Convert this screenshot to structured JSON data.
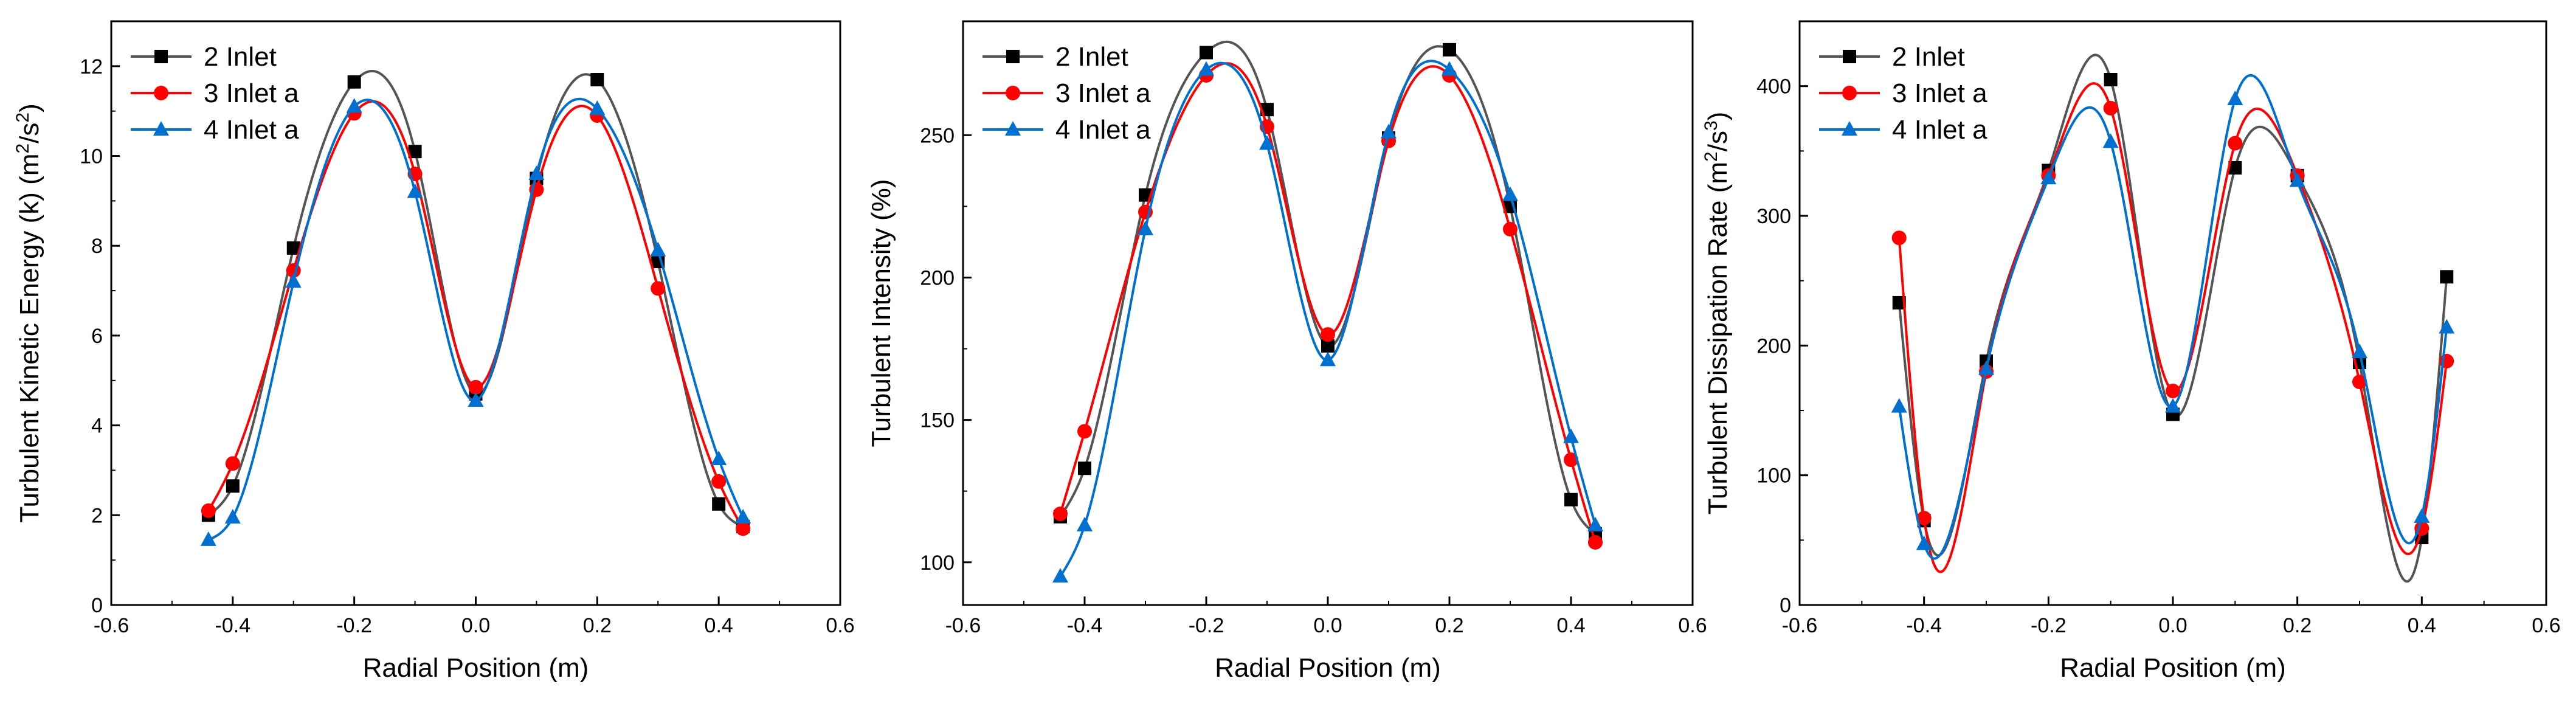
{
  "chart_data": [
    {
      "type": "line",
      "id": "tke",
      "title": "",
      "xlabel": "Radial Position (m)",
      "ylabel": "Turbulent Kinetic Energy (k) (m²/s²)",
      "ylabel_parts": [
        "Turbulent Kinetic Energy (k) (m",
        "2",
        "/s",
        "2",
        ")"
      ],
      "xlim": [
        -0.6,
        0.6
      ],
      "ylim": [
        0,
        13
      ],
      "xticks": [
        -0.6,
        -0.4,
        -0.2,
        0.0,
        0.2,
        0.4,
        0.6
      ],
      "xtick_labels": [
        "-0.6",
        "-0.4",
        "-0.2",
        "0.0",
        "0.2",
        "0.4",
        "0.6"
      ],
      "yticks": [
        0,
        2,
        4,
        6,
        8,
        10,
        12
      ],
      "ytick_labels": [
        "0",
        "2",
        "4",
        "6",
        "8",
        "10",
        "12"
      ],
      "grid": false,
      "legend_position": "top-left",
      "series": [
        {
          "name": "2 Inlet",
          "color": "#000000",
          "line_color": "#555555",
          "marker": "square",
          "x": [
            -0.44,
            -0.4,
            -0.3,
            -0.2,
            -0.1,
            0.0,
            0.1,
            0.2,
            0.3,
            0.4,
            0.44
          ],
          "y": [
            2.0,
            2.65,
            7.95,
            11.65,
            10.1,
            4.7,
            9.5,
            11.7,
            7.65,
            2.25,
            1.75
          ]
        },
        {
          "name": "3 Inlet a",
          "color": "#ff0000",
          "line_color": "#ff0000",
          "marker": "circle",
          "x": [
            -0.44,
            -0.4,
            -0.3,
            -0.2,
            -0.1,
            0.0,
            0.1,
            0.2,
            0.3,
            0.4,
            0.44
          ],
          "y": [
            2.1,
            3.15,
            7.45,
            10.95,
            9.6,
            4.85,
            9.25,
            10.9,
            7.05,
            2.75,
            1.7
          ]
        },
        {
          "name": "4 Inlet a",
          "color": "#0070d0",
          "line_color": "#0070d0",
          "marker": "triangle",
          "x": [
            -0.44,
            -0.4,
            -0.3,
            -0.2,
            -0.1,
            0.0,
            0.1,
            0.2,
            0.3,
            0.4,
            0.44
          ],
          "y": [
            1.45,
            1.95,
            7.2,
            11.1,
            9.2,
            4.55,
            9.6,
            11.05,
            7.9,
            3.25,
            1.95
          ]
        }
      ]
    },
    {
      "type": "line",
      "id": "ti",
      "title": "",
      "xlabel": "Radial Position (m)",
      "ylabel": "Turbulent Intensity (%)",
      "ylabel_parts": [
        "Turbulent Intensity (%)"
      ],
      "xlim": [
        -0.6,
        0.6
      ],
      "ylim": [
        85,
        290
      ],
      "xticks": [
        -0.6,
        -0.4,
        -0.2,
        0.0,
        0.2,
        0.4,
        0.6
      ],
      "xtick_labels": [
        "-0.6",
        "-0.4",
        "-0.2",
        "0.0",
        "0.2",
        "0.4",
        "0.6"
      ],
      "yticks": [
        100,
        150,
        200,
        250
      ],
      "ytick_labels": [
        "100",
        "150",
        "200",
        "250"
      ],
      "grid": false,
      "legend_position": "top-left",
      "series": [
        {
          "name": "2 Inlet",
          "color": "#000000",
          "line_color": "#555555",
          "marker": "square",
          "x": [
            -0.44,
            -0.4,
            -0.3,
            -0.2,
            -0.1,
            0.0,
            0.1,
            0.2,
            0.3,
            0.4,
            0.44
          ],
          "y": [
            116,
            133,
            229,
            279,
            259,
            176,
            249,
            280,
            225,
            122,
            110
          ]
        },
        {
          "name": "3 Inlet a",
          "color": "#ff0000",
          "line_color": "#ff0000",
          "marker": "circle",
          "x": [
            -0.44,
            -0.4,
            -0.3,
            -0.2,
            -0.1,
            0.0,
            0.1,
            0.2,
            0.3,
            0.4,
            0.44
          ],
          "y": [
            117,
            146,
            223,
            271,
            253,
            180,
            248,
            271,
            217,
            136,
            107
          ]
        },
        {
          "name": "4 Inlet a",
          "color": "#0070d0",
          "line_color": "#0070d0",
          "marker": "triangle",
          "x": [
            -0.44,
            -0.4,
            -0.3,
            -0.2,
            -0.1,
            0.0,
            0.1,
            0.2,
            0.3,
            0.4,
            0.44
          ],
          "y": [
            95,
            113,
            217,
            273,
            247,
            171,
            251,
            273,
            229,
            144,
            113
          ]
        }
      ]
    },
    {
      "type": "line",
      "id": "tdr",
      "title": "",
      "xlabel": "Radial Position (m)",
      "ylabel": "Turbulent Dissipation Rate (m²/s³)",
      "ylabel_parts": [
        "Turbulent Dissipation Rate (m",
        "2",
        "/s",
        "3",
        ")"
      ],
      "xlim": [
        -0.6,
        0.6
      ],
      "ylim": [
        0,
        450
      ],
      "xticks": [
        -0.6,
        -0.4,
        -0.2,
        0.0,
        0.2,
        0.4,
        0.6
      ],
      "xtick_labels": [
        "-0.6",
        "-0.4",
        "-0.2",
        "0.0",
        "0.2",
        "0.4",
        "0.6"
      ],
      "yticks": [
        0,
        100,
        200,
        300,
        400
      ],
      "ytick_labels": [
        "0",
        "100",
        "200",
        "300",
        "400"
      ],
      "grid": false,
      "legend_position": "top-left",
      "series": [
        {
          "name": "2 Inlet",
          "color": "#000000",
          "line_color": "#555555",
          "marker": "square",
          "x": [
            -0.44,
            -0.4,
            -0.3,
            -0.2,
            -0.1,
            0.0,
            0.1,
            0.2,
            0.3,
            0.4,
            0.44
          ],
          "y": [
            233,
            65,
            188,
            335,
            405,
            147,
            337,
            331,
            187,
            52,
            253
          ]
        },
        {
          "name": "3 Inlet a",
          "color": "#ff0000",
          "line_color": "#ff0000",
          "marker": "circle",
          "x": [
            -0.44,
            -0.4,
            -0.3,
            -0.2,
            -0.1,
            0.0,
            0.1,
            0.2,
            0.3,
            0.4,
            0.44
          ],
          "y": [
            283,
            67,
            180,
            331,
            383,
            165,
            356,
            331,
            172,
            59,
            188
          ]
        },
        {
          "name": "4 Inlet a",
          "color": "#0070d0",
          "line_color": "#0070d0",
          "marker": "triangle",
          "x": [
            -0.44,
            -0.4,
            -0.3,
            -0.2,
            -0.1,
            0.0,
            0.1,
            0.2,
            0.3,
            0.4,
            0.44
          ],
          "y": [
            153,
            47,
            182,
            329,
            357,
            153,
            390,
            327,
            195,
            68,
            214
          ]
        }
      ]
    }
  ]
}
